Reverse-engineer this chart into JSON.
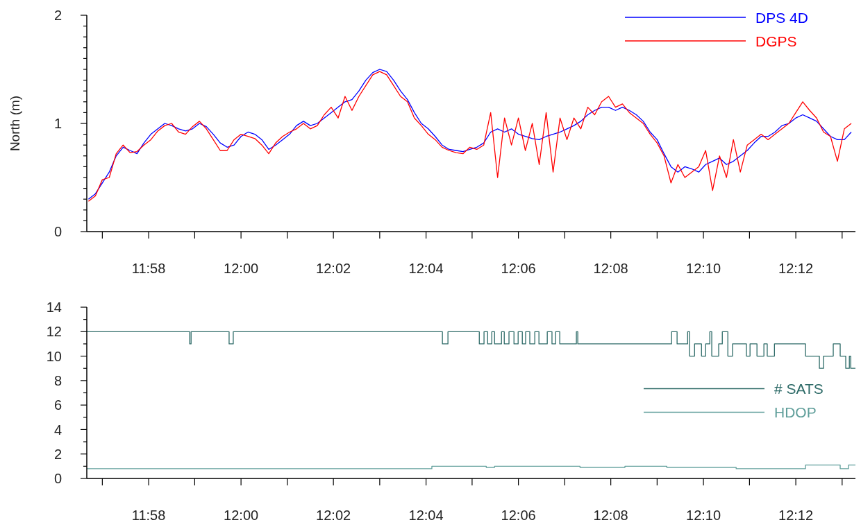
{
  "chart_data": [
    {
      "type": "line",
      "ylabel": "North (m)",
      "legend": "top right",
      "x": [
        11.945,
        11.9475,
        11.95,
        11.9525,
        11.955,
        11.9575,
        11.96,
        11.9625,
        11.965,
        11.9675,
        11.97,
        11.9725,
        11.975,
        11.9775,
        11.98,
        11.9825,
        11.985,
        11.9875,
        11.99,
        11.9925,
        11.995,
        11.9975,
        12.0,
        12.0025,
        12.005,
        12.0075,
        12.01,
        12.0125,
        12.015,
        12.0175,
        12.02,
        12.0225,
        12.025,
        12.0275,
        12.03,
        12.0325,
        12.035,
        12.0375,
        12.04,
        12.0425,
        12.045,
        12.0475,
        12.05,
        12.0525,
        12.055,
        12.0575,
        12.06,
        12.0625,
        12.065,
        12.0675,
        12.07,
        12.0725,
        12.075,
        12.0775,
        12.08,
        12.0825,
        12.085,
        12.0875,
        12.09,
        12.0925,
        12.095,
        12.0975,
        12.1,
        12.1025,
        12.105,
        12.1075,
        12.11,
        12.1125,
        12.115,
        12.1175,
        12.12,
        12.1225,
        12.125,
        12.1275,
        12.13,
        12.1325,
        12.135,
        12.1375,
        12.14,
        12.1425,
        12.145,
        12.1475,
        12.15,
        12.1525,
        12.155,
        12.1575,
        12.16,
        12.1625,
        12.165,
        12.1675,
        12.17,
        12.1725,
        12.175,
        12.1775,
        12.18,
        12.1825,
        12.185,
        12.1875,
        12.19,
        12.1925,
        12.195,
        12.1975,
        12.2,
        12.2025,
        12.205,
        12.2075,
        12.21,
        12.2125,
        12.215,
        12.2175,
        12.22
      ],
      "series": [
        {
          "name": "DPS 4D",
          "color": "#0000ff",
          "values": [
            0.3,
            0.35,
            0.45,
            0.55,
            0.7,
            0.78,
            0.75,
            0.72,
            0.82,
            0.9,
            0.95,
            1.0,
            0.98,
            0.95,
            0.93,
            0.95,
            1.0,
            0.97,
            0.9,
            0.82,
            0.78,
            0.8,
            0.88,
            0.92,
            0.9,
            0.85,
            0.76,
            0.8,
            0.85,
            0.9,
            0.98,
            1.02,
            0.98,
            1.0,
            1.05,
            1.1,
            1.15,
            1.2,
            1.22,
            1.3,
            1.4,
            1.47,
            1.5,
            1.48,
            1.4,
            1.3,
            1.22,
            1.1,
            1.0,
            0.95,
            0.88,
            0.8,
            0.76,
            0.75,
            0.74,
            0.76,
            0.78,
            0.82,
            0.92,
            0.95,
            0.92,
            0.95,
            0.9,
            0.88,
            0.86,
            0.85,
            0.88,
            0.9,
            0.92,
            0.95,
            0.98,
            1.02,
            1.08,
            1.12,
            1.15,
            1.15,
            1.12,
            1.15,
            1.12,
            1.08,
            1.02,
            0.92,
            0.85,
            0.72,
            0.6,
            0.55,
            0.6,
            0.58,
            0.55,
            0.62,
            0.65,
            0.68,
            0.62,
            0.65,
            0.7,
            0.75,
            0.82,
            0.88,
            0.88,
            0.92,
            0.98,
            1.0,
            1.05,
            1.08,
            1.05,
            1.02,
            0.95,
            0.88,
            0.85,
            0.85,
            0.92
          ]
        },
        {
          "name": "DGPS",
          "color": "#ff0000",
          "values": [
            0.28,
            0.33,
            0.48,
            0.5,
            0.72,
            0.8,
            0.73,
            0.74,
            0.8,
            0.85,
            0.93,
            0.98,
            1.0,
            0.92,
            0.9,
            0.97,
            1.02,
            0.95,
            0.85,
            0.75,
            0.75,
            0.85,
            0.9,
            0.88,
            0.86,
            0.8,
            0.72,
            0.82,
            0.88,
            0.92,
            0.95,
            1.0,
            0.95,
            0.98,
            1.08,
            1.15,
            1.05,
            1.25,
            1.12,
            1.25,
            1.35,
            1.45,
            1.48,
            1.45,
            1.35,
            1.25,
            1.2,
            1.05,
            0.98,
            0.9,
            0.85,
            0.78,
            0.75,
            0.73,
            0.72,
            0.78,
            0.76,
            0.8,
            1.1,
            0.5,
            1.05,
            0.8,
            1.05,
            0.75,
            1.0,
            0.62,
            1.1,
            0.55,
            1.05,
            0.85,
            1.05,
            0.95,
            1.15,
            1.08,
            1.2,
            1.25,
            1.15,
            1.18,
            1.1,
            1.05,
            1.0,
            0.9,
            0.82,
            0.7,
            0.45,
            0.62,
            0.5,
            0.55,
            0.6,
            0.75,
            0.38,
            0.7,
            0.5,
            0.85,
            0.55,
            0.8,
            0.85,
            0.9,
            0.85,
            0.9,
            0.95,
            1.0,
            1.1,
            1.2,
            1.12,
            1.05,
            0.92,
            0.88,
            0.65,
            0.95,
            1.0
          ]
        }
      ],
      "xlim": [
        11.9444,
        12.2215
      ],
      "xticks": [
        {
          "value": 11.95,
          "label": null
        },
        {
          "value": 11.9667,
          "label": "11:58"
        },
        {
          "value": 11.9833,
          "label": null
        },
        {
          "value": 12.0,
          "label": "12:00"
        },
        {
          "value": 12.0167,
          "label": null
        },
        {
          "value": 12.0333,
          "label": "12:02"
        },
        {
          "value": 12.05,
          "label": null
        },
        {
          "value": 12.0667,
          "label": "12:04"
        },
        {
          "value": 12.0833,
          "label": null
        },
        {
          "value": 12.1,
          "label": "12:06"
        },
        {
          "value": 12.1167,
          "label": null
        },
        {
          "value": 12.1333,
          "label": "12:08"
        },
        {
          "value": 12.15,
          "label": null
        },
        {
          "value": 12.1667,
          "label": "12:10"
        },
        {
          "value": 12.1833,
          "label": null
        },
        {
          "value": 12.2,
          "label": "12:12"
        },
        {
          "value": 12.2167,
          "label": null
        }
      ],
      "ylim": [
        0,
        2
      ],
      "yticks": [
        0,
        {
          "value": 0.1,
          "label": null
        },
        {
          "value": 0.2,
          "label": null
        },
        {
          "value": 0.3,
          "label": null
        },
        {
          "value": 0.4,
          "label": null
        },
        {
          "value": 0.5,
          "label": null
        },
        {
          "value": 0.6,
          "label": null
        },
        {
          "value": 0.7,
          "label": null
        },
        {
          "value": 0.8,
          "label": null
        },
        {
          "value": 0.9,
          "label": null
        },
        1,
        {
          "value": 1.1,
          "label": null
        },
        {
          "value": 1.2,
          "label": null
        },
        {
          "value": 1.3,
          "label": null
        },
        {
          "value": 1.4,
          "label": null
        },
        {
          "value": 1.5,
          "label": null
        },
        {
          "value": 1.6,
          "label": null
        },
        {
          "value": 1.7,
          "label": null
        },
        {
          "value": 1.8,
          "label": null
        },
        {
          "value": 1.9,
          "label": null
        },
        2
      ]
    },
    {
      "type": "step",
      "legend": "right",
      "series": [
        {
          "name": "# SATS",
          "color": "#2e6b68",
          "x": [
            11.9444,
            11.9815,
            11.982,
            11.9957,
            11.9972,
            12.0726,
            12.0746,
            12.0859,
            12.0876,
            12.0889,
            12.0904,
            12.0914,
            12.0939,
            12.0949,
            12.0966,
            12.0984,
            12.0999,
            12.1014,
            12.1026,
            12.1041,
            12.1059,
            12.1074,
            12.1104,
            12.1121,
            12.1134,
            12.1149,
            12.1209,
            12.1214,
            12.1552,
            12.1572,
            12.161,
            12.1617,
            12.1635,
            12.166,
            12.1675,
            12.169,
            12.1697,
            12.1722,
            12.1735,
            12.1755,
            12.1772,
            12.1822,
            12.1835,
            12.186,
            12.1885,
            12.1897,
            12.1923,
            12.2035,
            12.2085,
            12.21,
            12.2135,
            12.216,
            12.218,
            12.2193,
            12.2198,
            12.2215
          ],
          "values": [
            12,
            11,
            12,
            11,
            12,
            11,
            12,
            11,
            12,
            11,
            12,
            11,
            12,
            11,
            12,
            11,
            12,
            11,
            12,
            11,
            12,
            11,
            12,
            11,
            12,
            11,
            12,
            11,
            12,
            11,
            12,
            10,
            11,
            10,
            11,
            12,
            10,
            11,
            12,
            10,
            11,
            10,
            11,
            10,
            11,
            10,
            11,
            10,
            9,
            10,
            11,
            10,
            9,
            10,
            9,
            9
          ]
        },
        {
          "name": "HDOP",
          "color": "#5f9e9a",
          "x": [
            11.9444,
            12.0688,
            12.0884,
            12.0914,
            12.1222,
            12.1384,
            12.1535,
            12.1785,
            12.2035,
            12.216,
            12.219,
            12.2215
          ],
          "values": [
            0.8,
            1.0,
            0.9,
            1.0,
            0.9,
            1.0,
            0.9,
            0.8,
            1.1,
            0.8,
            1.1,
            1.1
          ]
        }
      ],
      "xlim": [
        11.9444,
        12.2215
      ],
      "xticks": [
        {
          "value": 11.95,
          "label": null
        },
        {
          "value": 11.9667,
          "label": "11:58"
        },
        {
          "value": 11.9833,
          "label": null
        },
        {
          "value": 12.0,
          "label": "12:00"
        },
        {
          "value": 12.0167,
          "label": null
        },
        {
          "value": 12.0333,
          "label": "12:02"
        },
        {
          "value": 12.05,
          "label": null
        },
        {
          "value": 12.0667,
          "label": "12:04"
        },
        {
          "value": 12.0833,
          "label": null
        },
        {
          "value": 12.1,
          "label": "12:06"
        },
        {
          "value": 12.1167,
          "label": null
        },
        {
          "value": 12.1333,
          "label": "12:08"
        },
        {
          "value": 12.15,
          "label": null
        },
        {
          "value": 12.1667,
          "label": "12:10"
        },
        {
          "value": 12.1833,
          "label": null
        },
        {
          "value": 12.2,
          "label": "12:12"
        },
        {
          "value": 12.2167,
          "label": null
        }
      ],
      "ylim": [
        0,
        14
      ],
      "yticks": [
        0,
        {
          "value": 1,
          "label": null
        },
        2,
        {
          "value": 3,
          "label": null
        },
        4,
        {
          "value": 5,
          "label": null
        },
        6,
        {
          "value": 7,
          "label": null
        },
        8,
        {
          "value": 9,
          "label": null
        },
        10,
        {
          "value": 11,
          "label": null
        },
        12,
        {
          "value": 13,
          "label": null
        },
        14
      ]
    }
  ]
}
